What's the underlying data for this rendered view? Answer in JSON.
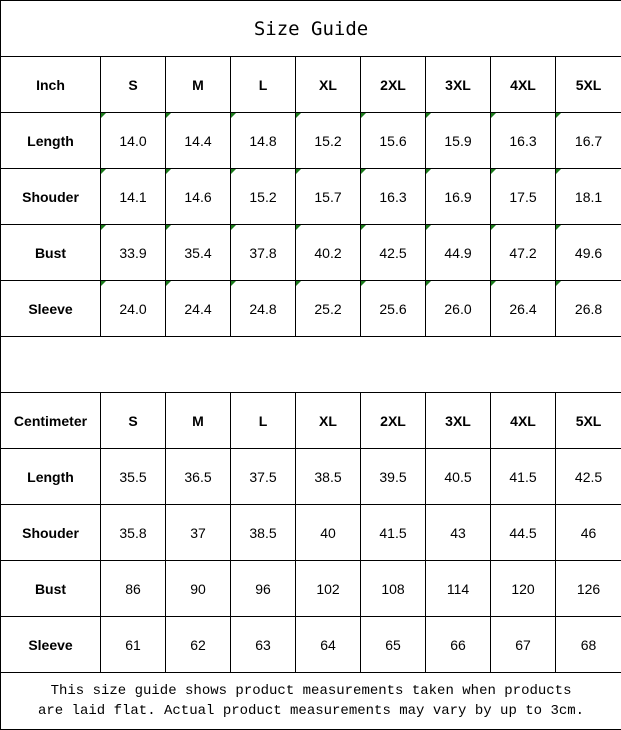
{
  "title": "Size Guide",
  "marker_color": "#1a7a1a",
  "inch": {
    "header": [
      "Inch",
      "S",
      "M",
      "L",
      "XL",
      "2XL",
      "3XL",
      "4XL",
      "5XL"
    ],
    "rows": [
      {
        "label": "Length",
        "values": [
          "14.0",
          "14.4",
          "14.8",
          "15.2",
          "15.6",
          "15.9",
          "16.3",
          "16.7"
        ]
      },
      {
        "label": "Shouder",
        "values": [
          "14.1",
          "14.6",
          "15.2",
          "15.7",
          "16.3",
          "16.9",
          "17.5",
          "18.1"
        ]
      },
      {
        "label": "Bust",
        "values": [
          "33.9",
          "35.4",
          "37.8",
          "40.2",
          "42.5",
          "44.9",
          "47.2",
          "49.6"
        ]
      },
      {
        "label": "Sleeve",
        "values": [
          "24.0",
          "24.4",
          "24.8",
          "25.2",
          "25.6",
          "26.0",
          "26.4",
          "26.8"
        ]
      }
    ]
  },
  "cm": {
    "header": [
      "Centimeter",
      "S",
      "M",
      "L",
      "XL",
      "2XL",
      "3XL",
      "4XL",
      "5XL"
    ],
    "rows": [
      {
        "label": "Length",
        "values": [
          "35.5",
          "36.5",
          "37.5",
          "38.5",
          "39.5",
          "40.5",
          "41.5",
          "42.5"
        ]
      },
      {
        "label": "Shouder",
        "values": [
          "35.8",
          "37",
          "38.5",
          "40",
          "41.5",
          "43",
          "44.5",
          "46"
        ]
      },
      {
        "label": "Bust",
        "values": [
          "86",
          "90",
          "96",
          "102",
          "108",
          "114",
          "120",
          "126"
        ]
      },
      {
        "label": "Sleeve",
        "values": [
          "61",
          "62",
          "63",
          "64",
          "65",
          "66",
          "67",
          "68"
        ]
      }
    ]
  },
  "footer": {
    "line1": "This size guide shows product measurements taken when products",
    "line2": "are laid flat. Actual product measurements may vary by up to 3cm."
  }
}
